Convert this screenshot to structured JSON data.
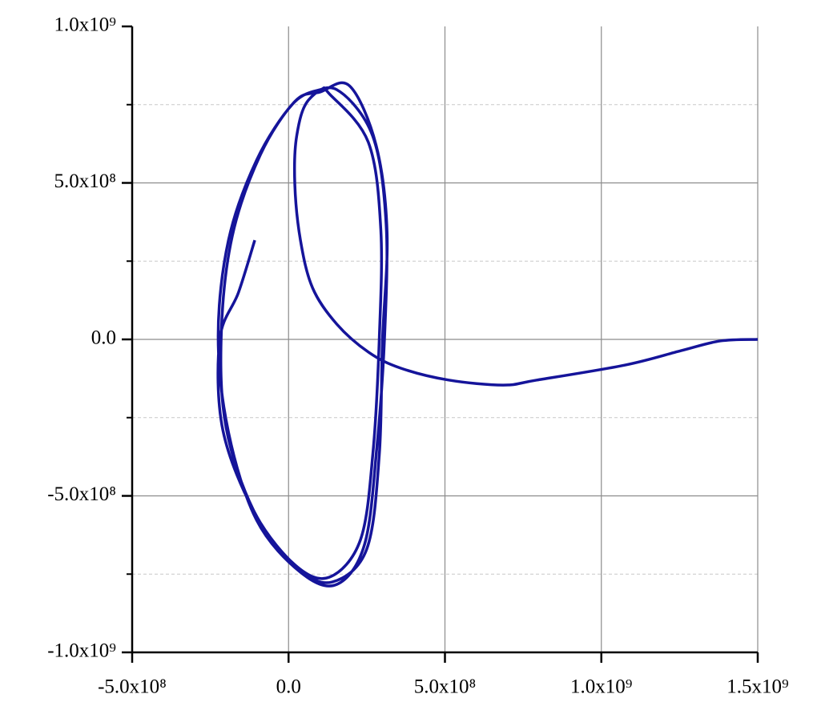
{
  "chart_data": {
    "type": "line",
    "series": [
      {
        "color": "#15149a",
        "x": [
          1500000000,
          1380000000,
          1255000000,
          1076000000,
          794000000,
          686000000,
          512000000,
          359000000,
          256000000,
          154000000,
          77000000,
          38000000,
          20000000,
          26000000,
          64000000,
          154000000,
          269000000,
          312000000,
          307000000,
          282000000,
          243000000,
          154000000,
          38000000,
          -102000000,
          -192000000,
          -225000000,
          -192000000,
          -102000000,
          13000000,
          102000000,
          130000000,
          255000000,
          295000000,
          290000000,
          270000000,
          230000000,
          130000000,
          20000000,
          -110000000,
          -200000000,
          -215000000,
          -180000000,
          -90000000,
          20000000,
          100000000,
          195000000,
          280000000,
          315000000,
          300000000,
          290000000,
          250000000,
          140000000,
          30000000,
          -105000000,
          -210000000,
          -220000000,
          -160000000,
          -108000000
        ],
        "y": [
          0,
          -5000000,
          -36000000,
          -82000000,
          -130000000,
          -146000000,
          -130000000,
          -92000000,
          -41000000,
          49000000,
          164000000,
          317000000,
          496000000,
          650000000,
          765000000,
          798000000,
          650000000,
          368000000,
          10000000,
          -348000000,
          -655000000,
          -783000000,
          -744000000,
          -578000000,
          -297000000,
          10000000,
          317000000,
          573000000,
          752000000,
          798000000,
          785000000,
          630000000,
          350000000,
          0,
          -360000000,
          -640000000,
          -760000000,
          -720000000,
          -550000000,
          -280000000,
          20000000,
          330000000,
          590000000,
          760000000,
          790000000,
          810000000,
          620000000,
          340000000,
          -10000000,
          -370000000,
          -670000000,
          -775000000,
          -730000000,
          -560000000,
          -290000000,
          0,
          150000000,
          317000000
        ]
      }
    ],
    "xlim": [
      -500000000,
      1500000000
    ],
    "ylim": [
      -1000000000,
      1000000000
    ],
    "xticks": [
      {
        "value": -500000000,
        "label": "-5.0x10⁸"
      },
      {
        "value": 0,
        "label": "0.0"
      },
      {
        "value": 500000000,
        "label": "5.0x10⁸"
      },
      {
        "value": 1000000000,
        "label": "1.0x10⁹"
      },
      {
        "value": 1500000000,
        "label": "1.5x10⁹"
      }
    ],
    "yticks": [
      {
        "value": -1000000000,
        "label": "-1.0x10⁹"
      },
      {
        "value": -500000000,
        "label": "-5.0x10⁸"
      },
      {
        "value": 0,
        "label": "0.0"
      },
      {
        "value": 500000000,
        "label": "5.0x10⁸"
      },
      {
        "value": 1000000000,
        "label": "1.0x10⁹"
      }
    ],
    "minor_yticks": [
      -750000000,
      -250000000,
      250000000,
      750000000
    ],
    "grid": true
  }
}
